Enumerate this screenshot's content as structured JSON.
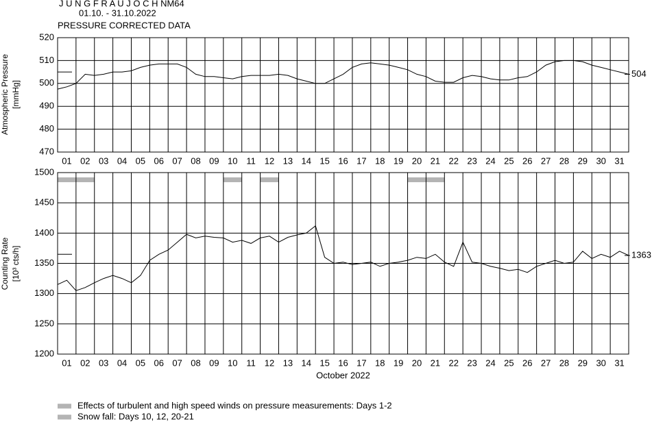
{
  "header": {
    "title": "J U N G F R A U J O C H  NM64",
    "subtitle": "01.10. - 31.10.2022",
    "note": "PRESSURE CORRECTED DATA"
  },
  "chart_data": [
    {
      "type": "line",
      "ylabel": [
        "Atmospheric Pressure",
        "[mmHg]"
      ],
      "color": "#000000",
      "xlim": [
        0,
        31
      ],
      "ylim": [
        470,
        520
      ],
      "yticks": [
        470,
        480,
        490,
        500,
        510,
        520
      ],
      "grid": true,
      "xticks": [
        {
          "value": 0.5,
          "label": "01"
        },
        {
          "value": 1.5,
          "label": "02"
        },
        {
          "value": 2.5,
          "label": "03"
        },
        {
          "value": 3.5,
          "label": "04"
        },
        {
          "value": 4.5,
          "label": "05"
        },
        {
          "value": 5.5,
          "label": "06"
        },
        {
          "value": 6.5,
          "label": "07"
        },
        {
          "value": 7.5,
          "label": "08"
        },
        {
          "value": 8.5,
          "label": "09"
        },
        {
          "value": 9.5,
          "label": "10"
        },
        {
          "value": 10.5,
          "label": "11"
        },
        {
          "value": 11.5,
          "label": "12"
        },
        {
          "value": 12.5,
          "label": "13"
        },
        {
          "value": 13.5,
          "label": "14"
        },
        {
          "value": 14.5,
          "label": "15"
        },
        {
          "value": 15.5,
          "label": "16"
        },
        {
          "value": 16.5,
          "label": "17"
        },
        {
          "value": 17.5,
          "label": "18"
        },
        {
          "value": 18.5,
          "label": "19"
        },
        {
          "value": 19.5,
          "label": "20"
        },
        {
          "value": 20.5,
          "label": "21"
        },
        {
          "value": 21.5,
          "label": "22"
        },
        {
          "value": 22.5,
          "label": "23"
        },
        {
          "value": 23.5,
          "label": "24"
        },
        {
          "value": 24.5,
          "label": "25"
        },
        {
          "value": 25.5,
          "label": "26"
        },
        {
          "value": 26.5,
          "label": "27"
        },
        {
          "value": 27.5,
          "label": "28"
        },
        {
          "value": 28.5,
          "label": "29"
        },
        {
          "value": 29.5,
          "label": "30"
        },
        {
          "value": 30.5,
          "label": "31"
        }
      ],
      "x": [
        0,
        0.5,
        1,
        1.5,
        2,
        2.5,
        3,
        3.5,
        4,
        4.5,
        5,
        5.5,
        6,
        6.5,
        7,
        7.5,
        8,
        8.5,
        9,
        9.5,
        10,
        10.5,
        11,
        11.5,
        12,
        12.5,
        13,
        13.5,
        14,
        14.5,
        15,
        15.5,
        16,
        16.5,
        17,
        17.5,
        18,
        18.5,
        19,
        19.5,
        20,
        20.5,
        21,
        21.5,
        22,
        22.5,
        23,
        23.5,
        24,
        24.5,
        25,
        25.5,
        26,
        26.5,
        27,
        27.5,
        28,
        28.5,
        29,
        29.5,
        30,
        30.5,
        31
      ],
      "values": [
        497.5,
        498.5,
        500,
        504,
        503.5,
        504,
        505,
        505,
        505.5,
        507,
        508,
        508.5,
        508.5,
        508.5,
        507,
        504,
        503,
        503,
        502.5,
        502,
        503,
        503.5,
        503.5,
        503.5,
        504,
        503.5,
        502,
        501,
        500,
        500,
        502,
        504,
        507,
        508.5,
        509,
        508.5,
        508,
        507,
        506,
        504,
        503,
        501,
        500.5,
        500.5,
        502.5,
        503.5,
        503,
        502,
        501.5,
        501.5,
        502.5,
        503,
        505,
        508,
        509.5,
        510,
        510,
        509.5,
        508,
        507,
        506,
        505,
        504
      ],
      "reference": 505,
      "end_label": {
        "value": 504,
        "label": "504"
      }
    },
    {
      "type": "line",
      "ylabel": [
        "Counting Rate",
        "[10³ cts/h]"
      ],
      "xlabel": "October 2022",
      "color": "#000000",
      "xlim": [
        0,
        31
      ],
      "ylim": [
        1200,
        1500
      ],
      "yticks": [
        1200,
        1250,
        1300,
        1350,
        1400,
        1450,
        1500
      ],
      "grid": true,
      "xticks": [
        {
          "value": 0.5,
          "label": "01"
        },
        {
          "value": 1.5,
          "label": "02"
        },
        {
          "value": 2.5,
          "label": "03"
        },
        {
          "value": 3.5,
          "label": "04"
        },
        {
          "value": 4.5,
          "label": "05"
        },
        {
          "value": 5.5,
          "label": "06"
        },
        {
          "value": 6.5,
          "label": "07"
        },
        {
          "value": 7.5,
          "label": "08"
        },
        {
          "value": 8.5,
          "label": "09"
        },
        {
          "value": 9.5,
          "label": "10"
        },
        {
          "value": 10.5,
          "label": "11"
        },
        {
          "value": 11.5,
          "label": "12"
        },
        {
          "value": 12.5,
          "label": "13"
        },
        {
          "value": 13.5,
          "label": "14"
        },
        {
          "value": 14.5,
          "label": "15"
        },
        {
          "value": 15.5,
          "label": "16"
        },
        {
          "value": 16.5,
          "label": "17"
        },
        {
          "value": 17.5,
          "label": "18"
        },
        {
          "value": 18.5,
          "label": "19"
        },
        {
          "value": 19.5,
          "label": "20"
        },
        {
          "value": 20.5,
          "label": "21"
        },
        {
          "value": 21.5,
          "label": "22"
        },
        {
          "value": 22.5,
          "label": "23"
        },
        {
          "value": 23.5,
          "label": "24"
        },
        {
          "value": 24.5,
          "label": "25"
        },
        {
          "value": 25.5,
          "label": "26"
        },
        {
          "value": 26.5,
          "label": "27"
        },
        {
          "value": 27.5,
          "label": "28"
        },
        {
          "value": 28.5,
          "label": "29"
        },
        {
          "value": 29.5,
          "label": "30"
        },
        {
          "value": 30.5,
          "label": "31"
        }
      ],
      "x": [
        0,
        0.5,
        1,
        1.5,
        2,
        2.5,
        3,
        3.5,
        4,
        4.5,
        5,
        5.5,
        6,
        6.5,
        7,
        7.5,
        8,
        8.5,
        9,
        9.5,
        10,
        10.5,
        11,
        11.5,
        12,
        12.5,
        13,
        13.5,
        14,
        14.5,
        15,
        15.5,
        16,
        16.5,
        17,
        17.5,
        18,
        18.5,
        19,
        19.5,
        20,
        20.5,
        21,
        21.5,
        22,
        22.5,
        23,
        23.5,
        24,
        24.5,
        25,
        25.5,
        26,
        26.5,
        27,
        27.5,
        28,
        28.5,
        29,
        29.5,
        30,
        30.5,
        31
      ],
      "values": [
        1315,
        1322,
        1305,
        1310,
        1318,
        1325,
        1330,
        1325,
        1318,
        1330,
        1355,
        1365,
        1372,
        1385,
        1398,
        1392,
        1395,
        1393,
        1392,
        1385,
        1388,
        1383,
        1392,
        1395,
        1385,
        1393,
        1397,
        1400,
        1412,
        1360,
        1350,
        1352,
        1348,
        1350,
        1352,
        1345,
        1350,
        1352,
        1355,
        1360,
        1358,
        1365,
        1352,
        1345,
        1385,
        1352,
        1350,
        1345,
        1342,
        1338,
        1340,
        1335,
        1345,
        1350,
        1355,
        1350,
        1352,
        1370,
        1358,
        1365,
        1360,
        1370,
        1363
      ],
      "reference": 1365,
      "end_label": {
        "value": 1363,
        "label": "1363"
      },
      "highlights": [
        {
          "name": "Effects of turbulent and high speed winds on pressure measurements: Days 1-2",
          "color": "#b4b4b4",
          "spans": [
            [
              0,
              2
            ]
          ]
        },
        {
          "name": "Snow fall: Days 10, 12, 20-21",
          "color": "#b4b4b4",
          "spans": [
            [
              9,
              10
            ],
            [
              11,
              12
            ],
            [
              19,
              21
            ]
          ]
        }
      ]
    }
  ]
}
